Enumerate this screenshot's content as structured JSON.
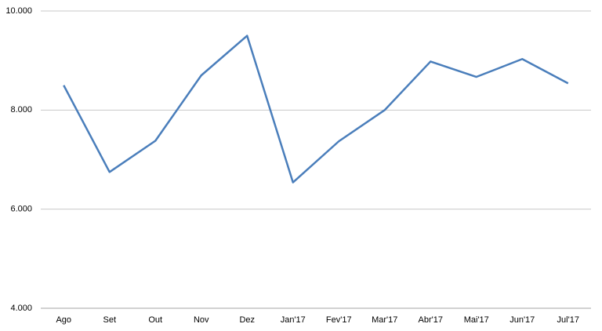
{
  "chart_data": {
    "type": "line",
    "categories": [
      "Ago",
      "Set",
      "Out",
      "Nov",
      "Dez",
      "Jan'17",
      "Fev'17",
      "Mar'17",
      "Abr'17",
      "Mai'17",
      "Jun'17",
      "Jul'17"
    ],
    "values": [
      8500,
      6750,
      7380,
      8700,
      9500,
      6540,
      7370,
      8000,
      8980,
      8670,
      9030,
      8540
    ],
    "color": "#4a7ebb",
    "ylim": [
      4000,
      10000
    ],
    "yticks": [
      {
        "value": 4000,
        "label": "4.000"
      },
      {
        "value": 6000,
        "label": "6.000"
      },
      {
        "value": 8000,
        "label": "8.000"
      },
      {
        "value": 10000,
        "label": "10.000"
      }
    ],
    "grid": true
  }
}
